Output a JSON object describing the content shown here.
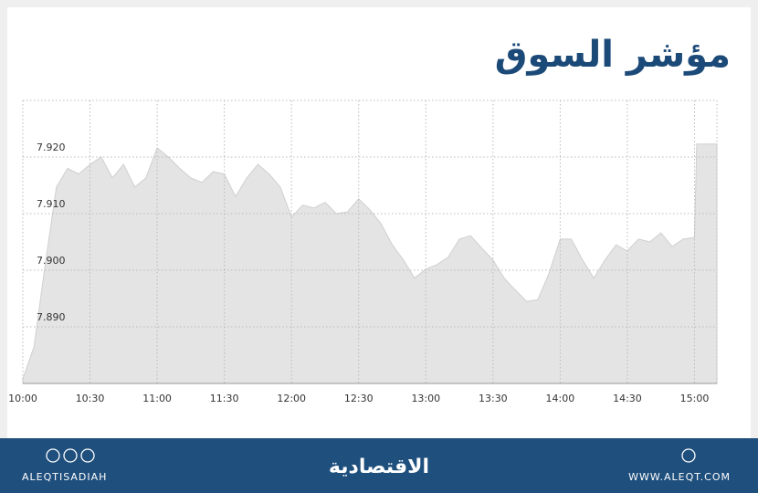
{
  "chart_data": {
    "type": "area",
    "title": "مؤشر السوق",
    "x": [
      600,
      605,
      610,
      615,
      620,
      625,
      630,
      635,
      640,
      645,
      650,
      655,
      660,
      665,
      670,
      675,
      680,
      685,
      690,
      695,
      700,
      705,
      710,
      715,
      720,
      725,
      730,
      735,
      740,
      745,
      750,
      755,
      760,
      765,
      770,
      775,
      780,
      785,
      790,
      795,
      800,
      805,
      810,
      815,
      820,
      825,
      830,
      835,
      840,
      845,
      850,
      855,
      860,
      865,
      870,
      875,
      880,
      885,
      890,
      895,
      900,
      901,
      910
    ],
    "values": [
      7.8808,
      7.8865,
      7.901,
      7.9147,
      7.918,
      7.917,
      7.9187,
      7.92,
      7.9163,
      7.9187,
      7.9147,
      7.9163,
      7.9216,
      7.92,
      7.918,
      7.9163,
      7.9155,
      7.9174,
      7.917,
      7.913,
      7.9163,
      7.9187,
      7.917,
      7.9147,
      7.9094,
      7.9115,
      7.911,
      7.912,
      7.91,
      7.9103,
      7.9126,
      7.9107,
      7.9082,
      7.9045,
      7.9018,
      7.8986,
      7.9002,
      7.901,
      7.9023,
      7.9055,
      7.9061,
      7.9039,
      7.9018,
      7.8986,
      7.8965,
      7.8945,
      7.8948,
      7.8994,
      7.9055,
      7.9055,
      7.9018,
      7.8986,
      7.9018,
      7.9045,
      7.9034,
      7.9055,
      7.905,
      7.9066,
      7.9042,
      7.9055,
      7.9058,
      7.9223,
      7.9223
    ],
    "color": "#e4e4e4",
    "xlim": [
      600,
      910
    ],
    "xticks": [
      {
        "value": 600,
        "label": "10:00"
      },
      {
        "value": 630,
        "label": "10:30"
      },
      {
        "value": 660,
        "label": "11:00"
      },
      {
        "value": 690,
        "label": "11:30"
      },
      {
        "value": 720,
        "label": "12:00"
      },
      {
        "value": 750,
        "label": "12:30"
      },
      {
        "value": 780,
        "label": "13:00"
      },
      {
        "value": 810,
        "label": "13:30"
      },
      {
        "value": 840,
        "label": "14:00"
      },
      {
        "value": 870,
        "label": "14:30"
      },
      {
        "value": 900,
        "label": "15:00"
      }
    ],
    "ylim": [
      7.88,
      7.93
    ],
    "yticks": [
      {
        "value": 7.89,
        "label": "7.890"
      },
      {
        "value": 7.9,
        "label": "7.900"
      },
      {
        "value": 7.91,
        "label": "7.910"
      },
      {
        "value": 7.92,
        "label": "7.920"
      }
    ],
    "grid": true
  },
  "footer": {
    "handle": "ALEQTISADIAH",
    "logo": "الاقتصادية",
    "website": "WWW.ALEQT.COM"
  }
}
